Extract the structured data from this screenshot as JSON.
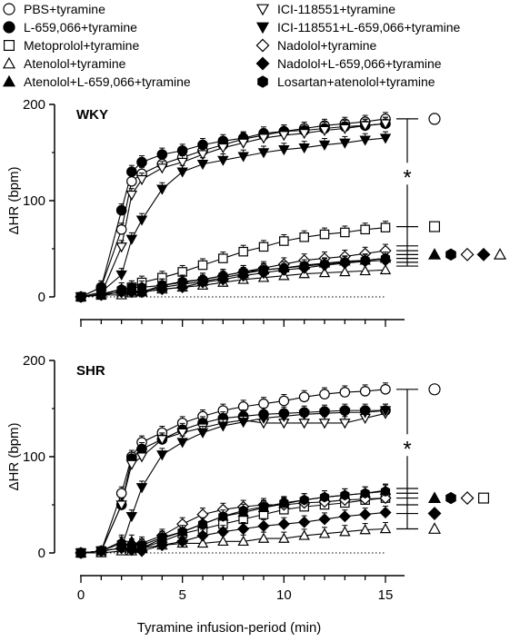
{
  "figure": {
    "xlabel": "Tyramine infusion-period (min)",
    "ylabel": "ΔHR (bpm)",
    "significance_symbol": "*"
  },
  "legend": [
    {
      "id": "pbs",
      "label": "PBS+tyramine",
      "marker": "circle",
      "fill": "white"
    },
    {
      "id": "l659",
      "label": "L-659,066+tyramine",
      "marker": "circle",
      "fill": "black"
    },
    {
      "id": "meto",
      "label": "Metoprolol+tyramine",
      "marker": "square",
      "fill": "white"
    },
    {
      "id": "aten",
      "label": "Atenolol+tyramine",
      "marker": "triangle-up",
      "fill": "white"
    },
    {
      "id": "atenl",
      "label": "Atenolol+L-659,066+tyramine",
      "marker": "triangle-up",
      "fill": "black"
    },
    {
      "id": "ici",
      "label": "ICI-118551+tyramine",
      "marker": "triangle-down",
      "fill": "white"
    },
    {
      "id": "icil",
      "label": "ICI-118551+L-659,066+tyramine",
      "marker": "triangle-down",
      "fill": "black"
    },
    {
      "id": "nad",
      "label": "Nadolol+tyramine",
      "marker": "diamond",
      "fill": "white"
    },
    {
      "id": "nadl",
      "label": "Nadolol+L-659,066+tyramine",
      "marker": "diamond",
      "fill": "black"
    },
    {
      "id": "los",
      "label": "Losartan+atenolol+tyramine",
      "marker": "hexagon",
      "fill": "black"
    }
  ],
  "chart_data": [
    {
      "type": "line",
      "title": "WKY",
      "xlabel": "",
      "ylabel": "ΔHR (bpm)",
      "xlim": [
        -0.5,
        15.5
      ],
      "ylim": [
        0,
        200
      ],
      "xticks": [
        0,
        5,
        10,
        15
      ],
      "yticks": [
        0,
        100,
        200
      ],
      "x": [
        0,
        1,
        2,
        2.5,
        3,
        4,
        5,
        6,
        7,
        8,
        9,
        10,
        11,
        12,
        13,
        14,
        15
      ],
      "series": [
        {
          "name": "PBS+tyramine",
          "values": [
            0,
            10,
            70,
            120,
            128,
            138,
            145,
            152,
            158,
            164,
            168,
            172,
            175,
            178,
            180,
            182,
            185
          ]
        },
        {
          "name": "L-659,066+tyramine",
          "values": [
            0,
            10,
            90,
            130,
            140,
            148,
            152,
            158,
            162,
            165,
            170,
            172,
            173,
            175,
            177,
            178,
            180
          ]
        },
        {
          "name": "Metoprolol+tyramine",
          "values": [
            0,
            2,
            5,
            10,
            15,
            20,
            26,
            33,
            40,
            47,
            52,
            58,
            62,
            65,
            67,
            70,
            72
          ]
        },
        {
          "name": "Atenolol+tyramine",
          "values": [
            0,
            2,
            2,
            4,
            5,
            8,
            10,
            12,
            15,
            18,
            20,
            22,
            24,
            25,
            26,
            27,
            28
          ]
        },
        {
          "name": "Atenolol+L-659,066+tyramine",
          "values": [
            0,
            2,
            8,
            6,
            6,
            10,
            13,
            16,
            20,
            24,
            28,
            30,
            33,
            35,
            37,
            38,
            40
          ]
        },
        {
          "name": "ICI-118551+tyramine",
          "values": [
            0,
            3,
            52,
            106,
            122,
            134,
            140,
            148,
            155,
            160,
            165,
            168,
            170,
            173,
            175,
            178,
            180
          ]
        },
        {
          "name": "ICI-118551+L-659,066+tyramine",
          "values": [
            0,
            5,
            23,
            60,
            80,
            112,
            130,
            138,
            142,
            146,
            150,
            153,
            155,
            158,
            160,
            163,
            165
          ]
        },
        {
          "name": "Nadolol+tyramine",
          "values": [
            0,
            2,
            5,
            5,
            5,
            12,
            15,
            18,
            22,
            26,
            30,
            34,
            38,
            40,
            42,
            45,
            48
          ]
        },
        {
          "name": "Nadolol+L-659,066+tyramine",
          "values": [
            0,
            2,
            5,
            5,
            5,
            8,
            10,
            15,
            18,
            22,
            25,
            28,
            30,
            33,
            35,
            37,
            38
          ]
        },
        {
          "name": "Losartan+atenolol+tyramine",
          "values": [
            0,
            3,
            8,
            10,
            10,
            12,
            16,
            18,
            22,
            26,
            28,
            30,
            32,
            34,
            36,
            38,
            40
          ]
        }
      ],
      "right_labels": [
        {
          "marker": "circle",
          "fill": "white",
          "y": 185
        },
        {
          "marker": "square",
          "fill": "white",
          "y": 73
        },
        {
          "marker": "row",
          "y": 44,
          "symbols": [
            {
              "marker": "triangle-up",
              "fill": "black"
            },
            {
              "marker": "hexagon",
              "fill": "black"
            },
            {
              "marker": "diamond",
              "fill": "white"
            },
            {
              "marker": "diamond",
              "fill": "black"
            },
            {
              "marker": "triangle-up",
              "fill": "white"
            }
          ]
        }
      ],
      "bracket": {
        "y_top": 185,
        "y_bottom": 73,
        "star_y": 128,
        "tick_ys": [
          185,
          73,
          53,
          48,
          44,
          40,
          36,
          32
        ]
      }
    },
    {
      "type": "line",
      "title": "SHR",
      "xlabel": "Tyramine infusion-period (min)",
      "ylabel": "ΔHR (bpm)",
      "xlim": [
        -0.5,
        15.5
      ],
      "ylim": [
        0,
        200
      ],
      "xticks": [
        0,
        5,
        10,
        15
      ],
      "yticks": [
        0,
        100,
        200
      ],
      "x": [
        0,
        1,
        2,
        2.5,
        3,
        4,
        5,
        6,
        7,
        8,
        9,
        10,
        11,
        12,
        13,
        14,
        15
      ],
      "series": [
        {
          "name": "PBS+tyramine",
          "values": [
            0,
            2,
            62,
            100,
            115,
            125,
            135,
            142,
            148,
            152,
            155,
            158,
            162,
            165,
            167,
            168,
            170
          ]
        },
        {
          "name": "L-659,066+tyramine",
          "values": [
            0,
            2,
            50,
            98,
            108,
            118,
            128,
            135,
            140,
            142,
            144,
            145,
            146,
            147,
            148,
            148,
            148
          ]
        },
        {
          "name": "Metoprolol+tyramine",
          "values": [
            0,
            2,
            5,
            5,
            5,
            12,
            20,
            25,
            30,
            35,
            40,
            45,
            48,
            50,
            52,
            55,
            57
          ]
        },
        {
          "name": "Atenolol+tyramine",
          "values": [
            0,
            0,
            2,
            2,
            5,
            8,
            10,
            10,
            12,
            12,
            15,
            15,
            18,
            20,
            22,
            24,
            25
          ]
        },
        {
          "name": "Atenolol+L-659,066+tyramine",
          "values": [
            0,
            2,
            12,
            12,
            5,
            15,
            22,
            30,
            38,
            42,
            47,
            51,
            55,
            58,
            60,
            62,
            65
          ]
        },
        {
          "name": "ICI-118551+tyramine",
          "values": [
            0,
            2,
            50,
            92,
            100,
            118,
            125,
            130,
            135,
            138,
            135,
            135,
            135,
            135,
            135,
            140,
            145
          ]
        },
        {
          "name": "ICI-118551+L-659,066+tyramine",
          "values": [
            0,
            2,
            5,
            38,
            68,
            102,
            115,
            125,
            132,
            136,
            140,
            142,
            144,
            145,
            146,
            146,
            148
          ]
        },
        {
          "name": "Nadolol+tyramine",
          "values": [
            0,
            2,
            5,
            5,
            10,
            18,
            30,
            40,
            45,
            48,
            50,
            50,
            52,
            53,
            55,
            56,
            57
          ]
        },
        {
          "name": "Nadolol+L-659,066+tyramine",
          "values": [
            0,
            2,
            5,
            3,
            2,
            8,
            12,
            18,
            22,
            25,
            28,
            30,
            32,
            35,
            38,
            40,
            42
          ]
        },
        {
          "name": "Losartan+atenolol+tyramine",
          "values": [
            0,
            2,
            10,
            8,
            8,
            16,
            22,
            30,
            38,
            44,
            48,
            52,
            55,
            58,
            60,
            62,
            64
          ]
        }
      ],
      "right_labels": [
        {
          "marker": "circle",
          "fill": "white",
          "y": 170
        },
        {
          "marker": "row",
          "y": 57,
          "symbols": [
            {
              "marker": "triangle-up",
              "fill": "black"
            },
            {
              "marker": "hexagon",
              "fill": "black"
            },
            {
              "marker": "diamond",
              "fill": "white"
            },
            {
              "marker": "square",
              "fill": "white"
            }
          ]
        },
        {
          "marker": "diamond",
          "fill": "black",
          "y": 41
        },
        {
          "marker": "triangle-up",
          "fill": "white",
          "y": 25
        }
      ],
      "bracket": {
        "y_top": 170,
        "y_bottom": 60,
        "star_y": 112,
        "tick_ys": [
          170,
          67,
          62,
          57,
          50,
          41,
          25
        ]
      }
    }
  ]
}
